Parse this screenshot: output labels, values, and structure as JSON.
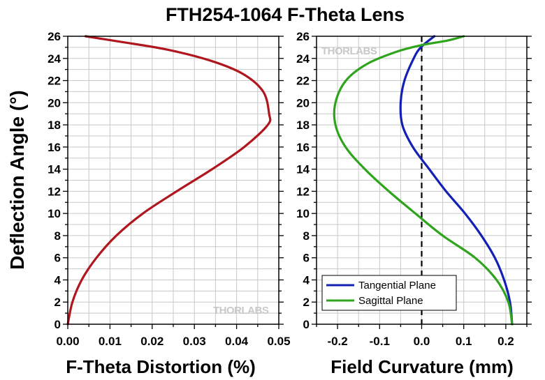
{
  "title": "FTH254-1064 F-Theta Lens",
  "y_axis_label": "Deflection Angle (°)",
  "watermark": "THORLABS",
  "colors": {
    "red": "#b0161d",
    "blue": "#1420b4",
    "green": "#2ea41c",
    "grid": "#c8c8c8"
  },
  "chart_data": [
    {
      "type": "line",
      "xlabel": "F-Theta Distortion (%)",
      "ylabel": "Deflection Angle (°)",
      "xlim": [
        0,
        0.05
      ],
      "ylim": [
        0,
        26
      ],
      "xticks": [
        "0.00",
        "0.01",
        "0.02",
        "0.03",
        "0.04",
        "0.05"
      ],
      "yticks": [
        "0",
        "2",
        "4",
        "6",
        "8",
        "10",
        "12",
        "14",
        "16",
        "18",
        "20",
        "22",
        "24",
        "26"
      ],
      "grid": true,
      "series": [
        {
          "color": "#b0161d",
          "points": [
            [
              0.0,
              0
            ],
            [
              0.0011,
              2
            ],
            [
              0.0033,
              4
            ],
            [
              0.0068,
              6
            ],
            [
              0.0115,
              8
            ],
            [
              0.0178,
              10
            ],
            [
              0.0258,
              12
            ],
            [
              0.0342,
              14
            ],
            [
              0.0418,
              16
            ],
            [
              0.0474,
              18
            ],
            [
              0.0477,
              19
            ],
            [
              0.0463,
              21
            ],
            [
              0.0415,
              22.6
            ],
            [
              0.0338,
              23.8
            ],
            [
              0.0235,
              24.8
            ],
            [
              0.0125,
              25.5
            ],
            [
              0.0042,
              26
            ]
          ]
        }
      ]
    },
    {
      "type": "line",
      "xlabel": "Field Curvature (mm)",
      "ylabel": "Deflection Angle (°)",
      "xlim": [
        -0.25,
        0.25
      ],
      "ylim": [
        0,
        26
      ],
      "xticks": [
        "-0.2",
        "-0.1",
        "0.0",
        "0.1",
        "0.2"
      ],
      "yticks": [
        "0",
        "2",
        "4",
        "6",
        "8",
        "10",
        "12",
        "14",
        "16",
        "18",
        "20",
        "22",
        "24",
        "26"
      ],
      "grid": true,
      "reference_line": {
        "x": 0.0,
        "style": "dashed"
      },
      "legend": {
        "placement": "bottom-left",
        "entries": [
          "Tangential Plane",
          "Sagittal Plane"
        ]
      },
      "series": [
        {
          "name": "Tangential Plane",
          "color": "#1420b4",
          "points": [
            [
              0.215,
              0
            ],
            [
              0.21,
              2
            ],
            [
              0.196,
              4
            ],
            [
              0.174,
              6
            ],
            [
              0.142,
              8
            ],
            [
              0.103,
              10
            ],
            [
              0.058,
              12
            ],
            [
              0.018,
              14
            ],
            [
              -0.021,
              16
            ],
            [
              -0.046,
              18
            ],
            [
              -0.05,
              20
            ],
            [
              -0.041,
              22
            ],
            [
              -0.019,
              24
            ],
            [
              -0.002,
              25
            ],
            [
              0.03,
              26
            ]
          ]
        },
        {
          "name": "Sagittal Plane",
          "color": "#2ea41c",
          "points": [
            [
              0.215,
              0
            ],
            [
              0.206,
              2
            ],
            [
              0.178,
              4
            ],
            [
              0.127,
              6
            ],
            [
              0.05,
              8
            ],
            [
              -0.015,
              10
            ],
            [
              -0.078,
              12
            ],
            [
              -0.135,
              14
            ],
            [
              -0.181,
              16
            ],
            [
              -0.205,
              18
            ],
            [
              -0.205,
              20
            ],
            [
              -0.18,
              22
            ],
            [
              -0.13,
              23.5
            ],
            [
              -0.06,
              24.6
            ],
            [
              0.0,
              25.2
            ],
            [
              0.06,
              25.6
            ],
            [
              0.1,
              26
            ]
          ]
        }
      ]
    }
  ]
}
